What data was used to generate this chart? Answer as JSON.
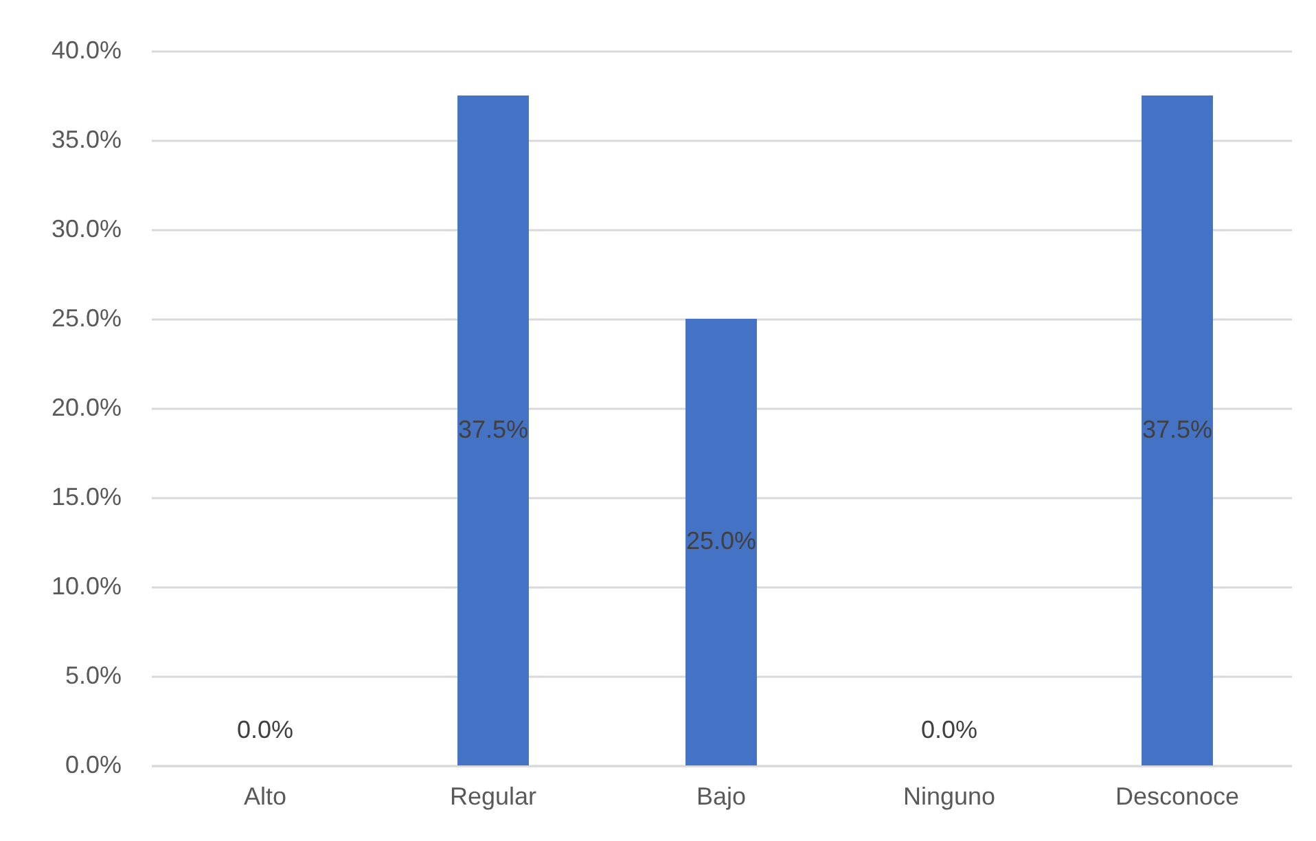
{
  "chart_data": {
    "type": "bar",
    "categories": [
      "Alto",
      "Regular",
      "Bajo",
      "Ninguno",
      "Desconoce"
    ],
    "values": [
      0,
      37.5,
      25,
      0,
      37.5
    ],
    "color": "#4472c4",
    "value_labels": [
      "0.0%",
      "37.5%",
      "25.0%",
      "0.0%",
      "37.5%"
    ],
    "ylim": [
      0,
      40
    ],
    "yticks": [
      {
        "value": 0,
        "label": "0.0%"
      },
      {
        "value": 5,
        "label": "5.0%"
      },
      {
        "value": 10,
        "label": "10.0%"
      },
      {
        "value": 15,
        "label": "15.0%"
      },
      {
        "value": 20,
        "label": "20.0%"
      },
      {
        "value": 25,
        "label": "25.0%"
      },
      {
        "value": 30,
        "label": "30.0%"
      },
      {
        "value": 35,
        "label": "35.0%"
      },
      {
        "value": 40,
        "label": "40.0%"
      }
    ],
    "grid": "y"
  }
}
